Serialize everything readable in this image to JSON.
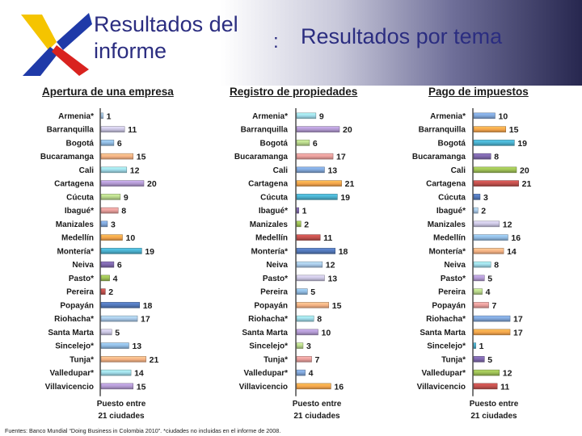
{
  "header": {
    "title_main": "Resultados del informe",
    "title_colon": ":",
    "title_sub": "Resultados por tema"
  },
  "footnote": "Fuentes: Banco Mundial “Doing Business in Colombia 2010”. *ciudades no incluidas en el informe de 2008.",
  "colors": {
    "title_blue": "#2b2d80",
    "logo_yellow": "#f5c400",
    "logo_blue": "#1f3aa8",
    "logo_red": "#d9231f",
    "bar_palette": [
      "#a7c7e7",
      "#c7c2df",
      "#8fb9e0",
      "#f4b183",
      "#9dd8e6",
      "#b098cf",
      "#b6d48a",
      "#e79d9a",
      "#7fa4d6",
      "#f3a44b",
      "#4aaecb",
      "#7d67aa",
      "#9cbe55",
      "#c0504d",
      "#5277b8"
    ]
  },
  "chart_data": [
    {
      "type": "bar",
      "orientation": "horizontal",
      "title": "Apertura de una empresa",
      "xlabel": "Puesto entre 21 ciudades",
      "xlim": [
        0,
        21
      ],
      "categories": [
        "Armenia*",
        "Barranquilla",
        "Bogotá",
        "Bucaramanga",
        "Cali",
        "Cartagena",
        "Cúcuta",
        "Ibagué*",
        "Manizales",
        "Medellín",
        "Montería*",
        "Neiva",
        "Pasto*",
        "Pereira",
        "Popayán",
        "Riohacha*",
        "Santa Marta",
        "Sincelejo*",
        "Tunja*",
        "Valledupar*",
        "Villavicencio"
      ],
      "values": [
        1,
        11,
        6,
        15,
        12,
        20,
        9,
        8,
        3,
        10,
        19,
        6,
        4,
        2,
        18,
        17,
        5,
        13,
        21,
        14,
        15
      ]
    },
    {
      "type": "bar",
      "orientation": "horizontal",
      "title": "Registro de propiedades",
      "xlabel": "Puesto entre 21 ciudades",
      "xlim": [
        0,
        21
      ],
      "categories": [
        "Armenia*",
        "Barranquilla",
        "Bogotá",
        "Bucaramanga",
        "Cali",
        "Cartagena",
        "Cúcuta",
        "Ibagué*",
        "Manizales",
        "Medellín",
        "Montería*",
        "Neiva",
        "Pasto*",
        "Pereira",
        "Popayán",
        "Riohacha*",
        "Santa Marta",
        "Sincelejo*",
        "Tunja*",
        "Valledupar*",
        "Villavicencio"
      ],
      "values": [
        9,
        20,
        6,
        17,
        13,
        21,
        19,
        1,
        2,
        11,
        18,
        12,
        13,
        5,
        15,
        8,
        10,
        3,
        7,
        4,
        16
      ]
    },
    {
      "type": "bar",
      "orientation": "horizontal",
      "title": "Pago de impuestos",
      "xlabel": "Puesto entre 21 ciudades",
      "xlim": [
        0,
        21
      ],
      "categories": [
        "Armenia*",
        "Barranquilla",
        "Bogotá",
        "Bucaramanga",
        "Cali",
        "Cartagena",
        "Cúcuta",
        "Ibagué*",
        "Manizales",
        "Medellín",
        "Montería*",
        "Neiva",
        "Pasto*",
        "Pereira",
        "Popayán",
        "Riohacha*",
        "Santa Marta",
        "Sincelejo*",
        "Tunja*",
        "Valledupar*",
        "Villavicencio"
      ],
      "values": [
        10,
        15,
        19,
        8,
        20,
        21,
        3,
        2,
        12,
        16,
        14,
        8,
        5,
        4,
        7,
        17,
        17,
        1,
        5,
        12,
        11
      ]
    }
  ]
}
